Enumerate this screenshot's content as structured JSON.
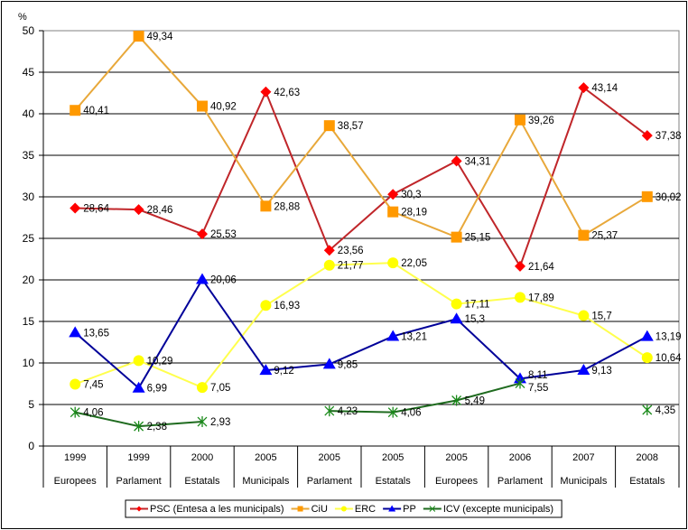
{
  "chart_data": {
    "type": "line",
    "ylabel": "%",
    "ylim": [
      0,
      50
    ],
    "yticks": [
      0,
      5,
      10,
      15,
      20,
      25,
      30,
      35,
      40,
      45,
      50
    ],
    "grid": true,
    "legend_position": "bottom",
    "categories": [
      {
        "year": "1999",
        "type": "Europees"
      },
      {
        "year": "1999",
        "type": "Parlament"
      },
      {
        "year": "2000",
        "type": "Estatals"
      },
      {
        "year": "2005",
        "type": "Municipals"
      },
      {
        "year": "2005",
        "type": "Parlament"
      },
      {
        "year": "2005",
        "type": "Estatals"
      },
      {
        "year": "2005",
        "type": "Europees"
      },
      {
        "year": "2006",
        "type": "Parlament"
      },
      {
        "year": "2007",
        "type": "Municipals"
      },
      {
        "year": "2008",
        "type": "Estatals"
      }
    ],
    "series": [
      {
        "name": "PSC (Entesa a les municipals)",
        "color": "#ff0000",
        "line": "#c0262a",
        "marker": "diamond",
        "values": [
          28.64,
          28.46,
          25.53,
          42.63,
          23.56,
          30.3,
          34.31,
          21.64,
          43.14,
          37.38
        ],
        "labels": [
          "28,64",
          "28,46",
          "25,53",
          "42,63",
          "23,56",
          "30,3",
          "34,31",
          "21,64",
          "43,14",
          "37,38"
        ]
      },
      {
        "name": "CiU",
        "color": "#ff9900",
        "line": "#e8a83a",
        "marker": "square",
        "values": [
          40.41,
          49.34,
          40.92,
          28.88,
          38.57,
          28.19,
          25.15,
          39.26,
          25.37,
          30.02
        ],
        "labels": [
          "40,41",
          "49,34",
          "40,92",
          "28,88",
          "38,57",
          "28,19",
          "25,15",
          "39,26",
          "25,37",
          "30,02"
        ]
      },
      {
        "name": "ERC",
        "color": "#ffff00",
        "line": "#ffff4d",
        "marker": "circle",
        "values": [
          7.45,
          10.29,
          7.05,
          16.93,
          21.77,
          22.05,
          17.11,
          17.89,
          15.7,
          10.64
        ],
        "labels": [
          "7,45",
          "10,29",
          "7,05",
          "16,93",
          "21,77",
          "22,05",
          "17,11",
          "17,89",
          "15,7",
          "10,64"
        ]
      },
      {
        "name": "PP",
        "color": "#0000ff",
        "line": "#000099",
        "marker": "triangle",
        "values": [
          13.65,
          6.99,
          20.06,
          9.12,
          9.85,
          13.21,
          15.3,
          8.11,
          9.13,
          13.19
        ],
        "labels": [
          "13,65",
          "6,99",
          "20,06",
          "9,12",
          "9,85",
          "13,21",
          "15,3",
          "8,11",
          "9,13",
          "13,19"
        ]
      },
      {
        "name": "ICV (excepte municipals)",
        "color": "#1a8a1a",
        "line": "#1f6b1f",
        "marker": "star",
        "values": [
          4.06,
          2.38,
          2.93,
          null,
          4.23,
          4.06,
          5.49,
          7.55,
          null,
          4.35
        ],
        "labels": [
          "4,06",
          "2,38",
          "2,93",
          null,
          "4,23",
          "4,06",
          "5,49",
          "7,55",
          null,
          "4,35"
        ]
      }
    ]
  }
}
